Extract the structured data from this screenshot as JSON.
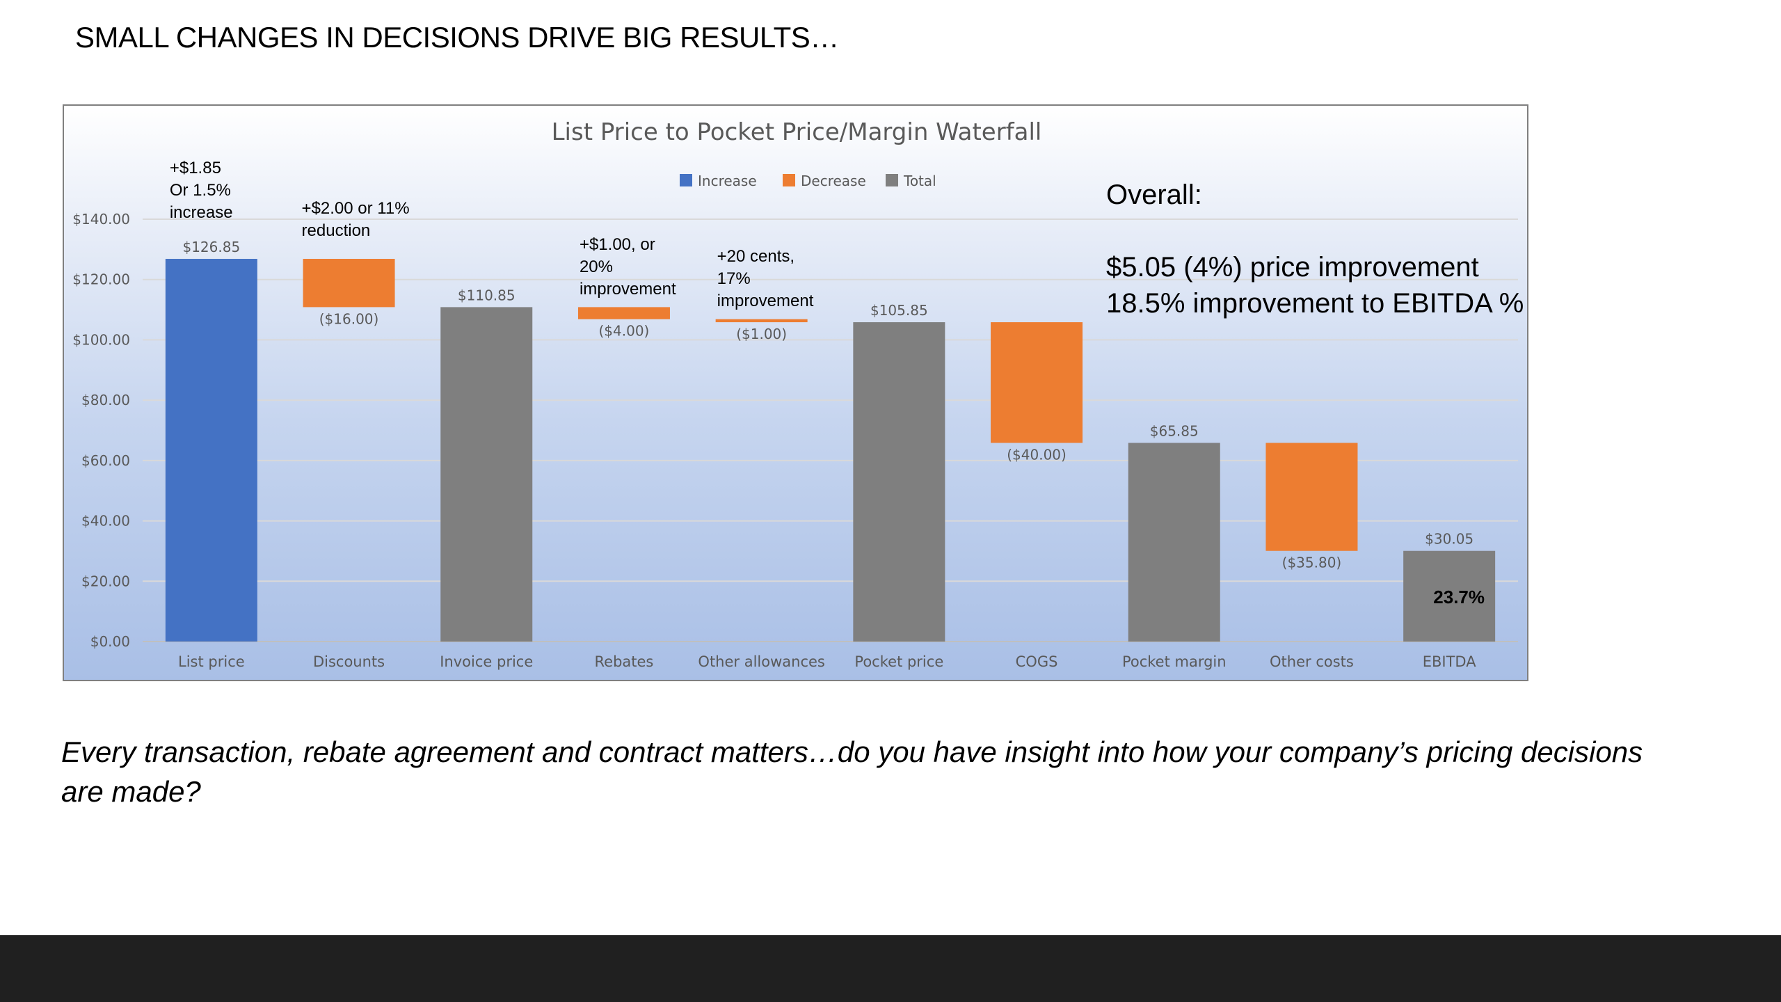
{
  "slide": {
    "title": "SMALL CHANGES IN DECISIONS DRIVE BIG RESULTS…",
    "overall_heading": "Overall:",
    "overall_lines": [
      "$5.05 (4%) price improvement",
      "18.5% improvement to EBITDA %"
    ],
    "footer_question": "Every transaction, rebate agreement and contract matters…do you have insight into how your company’s pricing decisions are made?"
  },
  "colors": {
    "increase": "#4472c4",
    "decrease": "#ed7d31",
    "total": "#7f7f7f",
    "footer_bar": "#202020"
  },
  "chart_data": {
    "type": "bar",
    "subtype": "waterfall",
    "title": "List Price to Pocket Price/Margin Waterfall",
    "categories": [
      "List price",
      "Discounts",
      "Invoice price",
      "Rebates",
      "Other allowances",
      "Pocket price",
      "COGS",
      "Pocket margin",
      "Other costs",
      "EBITDA"
    ],
    "bars": [
      {
        "category": "List price",
        "kind": "increase",
        "start": 0,
        "end": 126.85,
        "label": "$126.85",
        "label_pos": "above"
      },
      {
        "category": "Discounts",
        "kind": "decrease",
        "start": 126.85,
        "end": 110.85,
        "label": "($16.00)",
        "label_pos": "below"
      },
      {
        "category": "Invoice price",
        "kind": "total",
        "start": 0,
        "end": 110.85,
        "label": "$110.85",
        "label_pos": "above"
      },
      {
        "category": "Rebates",
        "kind": "decrease",
        "start": 110.85,
        "end": 106.85,
        "label": "($4.00)",
        "label_pos": "below"
      },
      {
        "category": "Other allowances",
        "kind": "decrease",
        "start": 106.85,
        "end": 105.85,
        "label": "($1.00)",
        "label_pos": "below"
      },
      {
        "category": "Pocket price",
        "kind": "total",
        "start": 0,
        "end": 105.85,
        "label": "$105.85",
        "label_pos": "above"
      },
      {
        "category": "COGS",
        "kind": "decrease",
        "start": 105.85,
        "end": 65.85,
        "label": "($40.00)",
        "label_pos": "below"
      },
      {
        "category": "Pocket margin",
        "kind": "total",
        "start": 0,
        "end": 65.85,
        "label": "$65.85",
        "label_pos": "above"
      },
      {
        "category": "Other costs",
        "kind": "decrease",
        "start": 65.85,
        "end": 30.05,
        "label": "($35.80)",
        "label_pos": "below"
      },
      {
        "category": "EBITDA",
        "kind": "total",
        "start": 0,
        "end": 30.05,
        "label": "$30.05",
        "label_pos": "above"
      }
    ],
    "y_ticks": [
      0,
      20,
      40,
      60,
      80,
      100,
      120,
      140
    ],
    "y_tick_labels": [
      "$0.00",
      "$20.00",
      "$40.00",
      "$60.00",
      "$80.00",
      "$100.00",
      "$120.00",
      "$140.00"
    ],
    "ylim": [
      0,
      140
    ],
    "grid": true,
    "legend": {
      "placement": "top-center",
      "entries": [
        {
          "name": "Increase",
          "kind": "increase"
        },
        {
          "name": "Decrease",
          "kind": "decrease"
        },
        {
          "name": "Total",
          "kind": "total"
        }
      ]
    },
    "annotations": [
      {
        "category": "List price",
        "lines": [
          "+$1.85",
          "Or 1.5%",
          "increase"
        ]
      },
      {
        "category": "Discounts",
        "lines": [
          "+$2.00 or 11%",
          "reduction"
        ]
      },
      {
        "category": "Rebates",
        "lines": [
          "+$1.00, or",
          "20%",
          "improvement"
        ]
      },
      {
        "category": "Other allowances",
        "lines": [
          "+20 cents,",
          "17%",
          "improvement"
        ]
      }
    ],
    "inside_labels": [
      {
        "category": "EBITDA",
        "text": "23.7%"
      }
    ]
  }
}
